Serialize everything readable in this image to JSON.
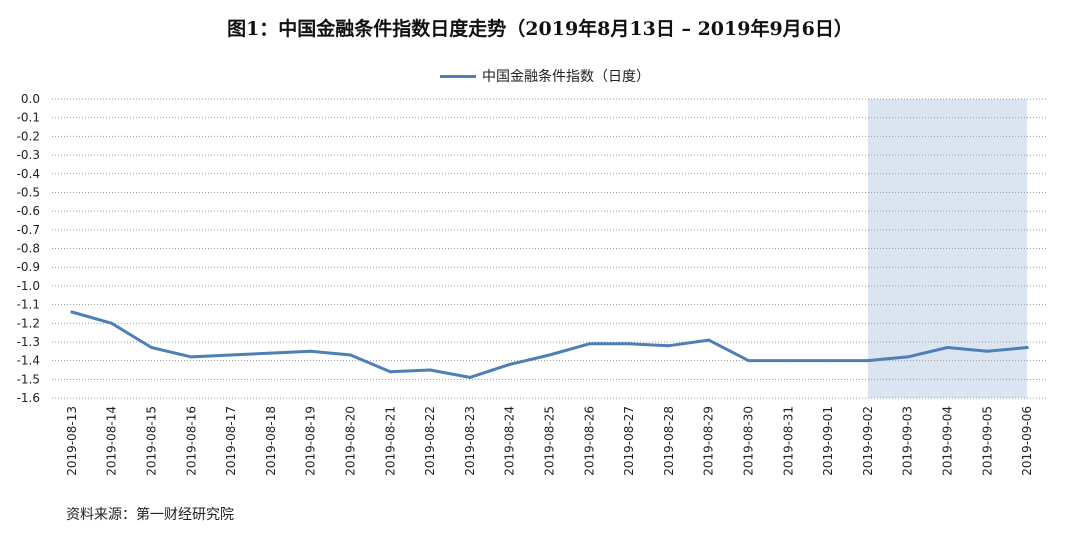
{
  "title": "图1：中国金融条件指数日度走势（2019年8月13日 – 2019年9月6日）",
  "source": "资料来源：第一财经研究院",
  "colors": {
    "line": "#4e7fb5",
    "highlight": "#dbe4f1",
    "grid": "#9a9a9a"
  },
  "chart_data": {
    "type": "line",
    "title": "图1：中国金融条件指数日度走势（2019年8月13日 – 2019年9月6日）",
    "xlabel": "",
    "ylabel": "",
    "ylim": [
      -1.6,
      0.0
    ],
    "y_ticks": [
      "0.0",
      "-0.1",
      "-0.2",
      "-0.3",
      "-0.4",
      "-0.5",
      "-0.6",
      "-0.7",
      "-0.8",
      "-0.9",
      "-1.0",
      "-1.1",
      "-1.2",
      "-1.3",
      "-1.4",
      "-1.5",
      "-1.6"
    ],
    "grid": true,
    "legend_position": "top-center",
    "highlight_range": [
      "2019-09-02",
      "2019-09-06"
    ],
    "categories": [
      "2019-08-13",
      "2019-08-14",
      "2019-08-15",
      "2019-08-16",
      "2019-08-17",
      "2019-08-18",
      "2019-08-19",
      "2019-08-20",
      "2019-08-21",
      "2019-08-22",
      "2019-08-23",
      "2019-08-24",
      "2019-08-25",
      "2019-08-26",
      "2019-08-27",
      "2019-08-28",
      "2019-08-29",
      "2019-08-30",
      "2019-08-31",
      "2019-09-01",
      "2019-09-02",
      "2019-09-03",
      "2019-09-04",
      "2019-09-05",
      "2019-09-06"
    ],
    "series": [
      {
        "name": "中国金融条件指数（日度）",
        "values": [
          -1.14,
          -1.2,
          -1.33,
          -1.38,
          -1.37,
          -1.36,
          -1.35,
          -1.37,
          -1.46,
          -1.45,
          -1.49,
          -1.42,
          -1.37,
          -1.31,
          -1.31,
          -1.32,
          -1.29,
          -1.4,
          -1.4,
          -1.4,
          -1.4,
          -1.38,
          -1.33,
          -1.35,
          -1.33
        ]
      }
    ]
  }
}
